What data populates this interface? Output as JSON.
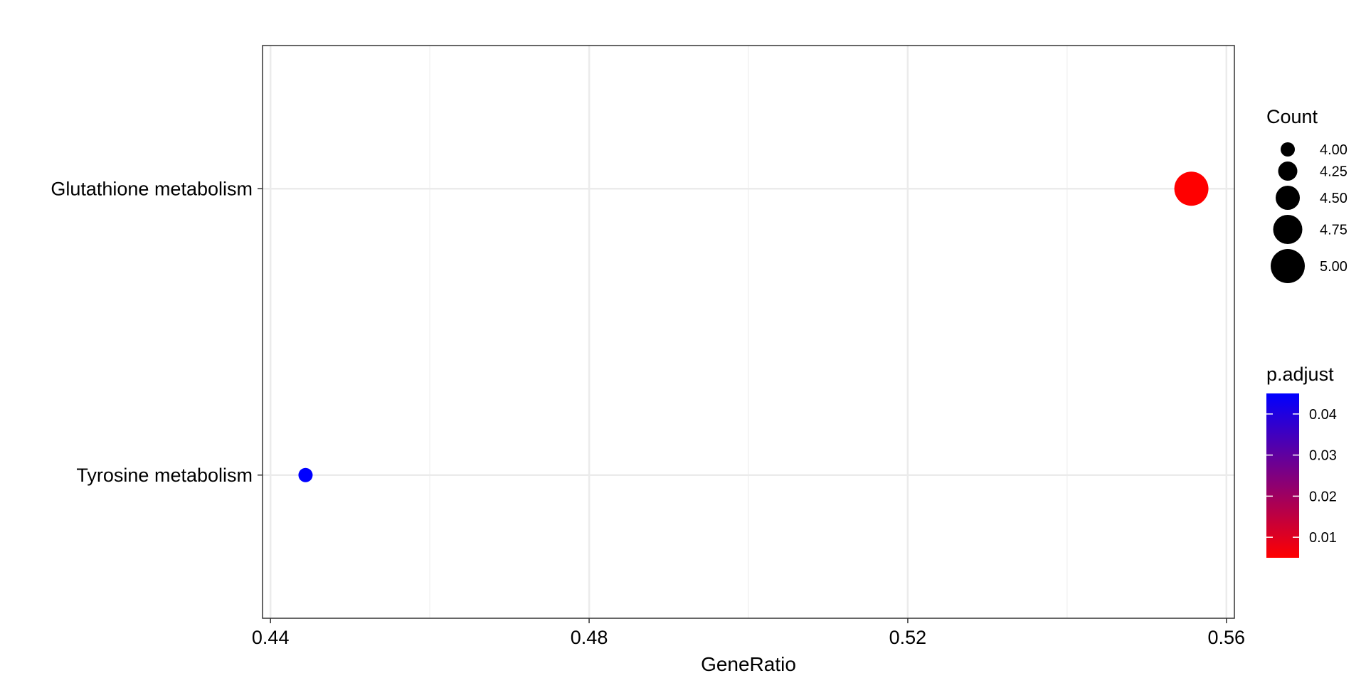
{
  "chart_data": {
    "type": "scatter",
    "title": "",
    "xlabel": "GeneRatio",
    "ylabel": "",
    "xlim": [
      0.439,
      0.561
    ],
    "xticks": [
      0.44,
      0.48,
      0.52,
      0.56
    ],
    "xtick_labels": [
      "0.44",
      "0.48",
      "0.52",
      "0.56"
    ],
    "categories": [
      "Glutathione metabolism",
      "Tyrosine metabolism"
    ],
    "points": [
      {
        "term": "Glutathione metabolism",
        "gene_ratio": 0.5556,
        "count": 5,
        "p_adjust": 0.005
      },
      {
        "term": "Tyrosine metabolism",
        "gene_ratio": 0.4444,
        "count": 4,
        "p_adjust": 0.045
      }
    ],
    "size_legend": {
      "title": "Count",
      "values": [
        4.0,
        4.25,
        4.5,
        4.75,
        5.0
      ],
      "labels": [
        "4.00",
        "4.25",
        "4.50",
        "4.75",
        "5.00"
      ]
    },
    "color_legend": {
      "title": "p.adjust",
      "range": [
        0.005,
        0.045
      ],
      "ticks": [
        0.01,
        0.02,
        0.03,
        0.04
      ],
      "tick_labels": [
        "0.01",
        "0.02",
        "0.03",
        "0.04"
      ],
      "low_color": "#ff0000",
      "high_color": "#0000ff"
    },
    "grid": true,
    "legend_position": "right"
  }
}
